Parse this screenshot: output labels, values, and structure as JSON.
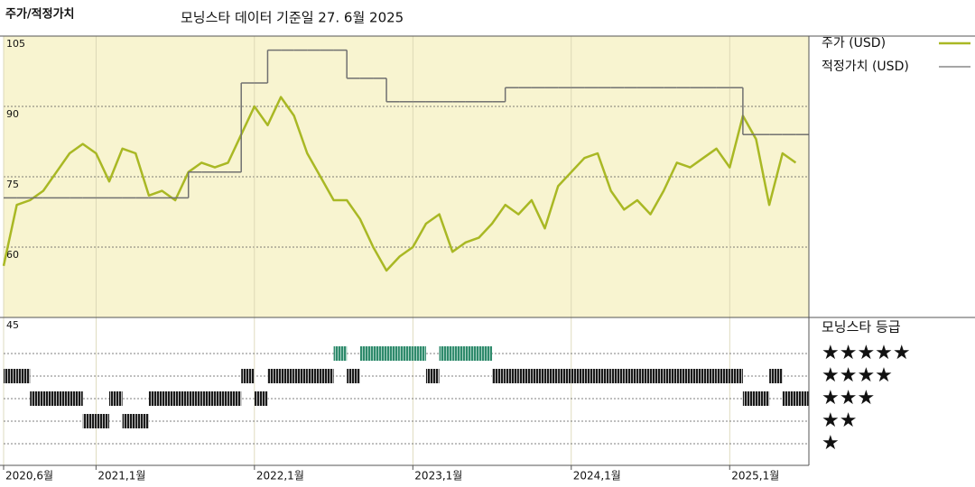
{
  "chart_data": {
    "type": "line",
    "title": "주가/적정가치",
    "subtitle": "모닝스타 데이터 기준일 27. 6월 2025",
    "x": [
      "2020-06",
      "2020-07",
      "2020-08",
      "2020-09",
      "2020-10",
      "2020-11",
      "2020-12",
      "2021-01",
      "2021-02",
      "2021-03",
      "2021-04",
      "2021-05",
      "2021-06",
      "2021-07",
      "2021-08",
      "2021-09",
      "2021-10",
      "2021-11",
      "2021-12",
      "2022-01",
      "2022-02",
      "2022-03",
      "2022-04",
      "2022-05",
      "2022-06",
      "2022-07",
      "2022-08",
      "2022-09",
      "2022-10",
      "2022-11",
      "2022-12",
      "2023-01",
      "2023-02",
      "2023-03",
      "2023-04",
      "2023-05",
      "2023-06",
      "2023-07",
      "2023-08",
      "2023-09",
      "2023-10",
      "2023-11",
      "2023-12",
      "2024-01",
      "2024-02",
      "2024-03",
      "2024-04",
      "2024-05",
      "2024-06",
      "2024-07",
      "2024-08",
      "2024-09",
      "2024-10",
      "2024-11",
      "2024-12",
      "2025-01",
      "2025-02",
      "2025-03",
      "2025-04",
      "2025-05",
      "2025-06"
    ],
    "xlim": [
      "2020-06",
      "2025-07"
    ],
    "xticks": [
      {
        "value": "2020-06",
        "label": "2020,6월"
      },
      {
        "value": "2021-01",
        "label": "2021,1월"
      },
      {
        "value": "2022-01",
        "label": "2022,1월"
      },
      {
        "value": "2023-01",
        "label": "2023,1월"
      },
      {
        "value": "2024-01",
        "label": "2024,1월"
      },
      {
        "value": "2025-01",
        "label": "2025,1월"
      }
    ],
    "ylim": [
      45,
      105
    ],
    "yticks": [
      45,
      60,
      75,
      90,
      105
    ],
    "grid": true,
    "series": [
      {
        "name": "주가 (USD)",
        "color": "#a9b824",
        "values": [
          56,
          69,
          70,
          72,
          76,
          80,
          82,
          80,
          74,
          81,
          80,
          71,
          72,
          70,
          76,
          78,
          77,
          78,
          84,
          90,
          86,
          92,
          88,
          80,
          75,
          70,
          70,
          66,
          60,
          55,
          58,
          60,
          65,
          67,
          59,
          61,
          62,
          65,
          69,
          67,
          70,
          64,
          73,
          76,
          79,
          80,
          72,
          68,
          70,
          67,
          72,
          78,
          77,
          79,
          81,
          77,
          88,
          83,
          69,
          80,
          78
        ]
      },
      {
        "name": "적정가치 (USD)",
        "color": "#707070",
        "step": true,
        "values": [
          70.5,
          70.5,
          70.5,
          70.5,
          70.5,
          70.5,
          70.5,
          70.5,
          70.5,
          70.5,
          70.5,
          70.5,
          70.5,
          70.5,
          76,
          76,
          76,
          76,
          95,
          95,
          102,
          102,
          102,
          102,
          102,
          102,
          96,
          96,
          96,
          91,
          91,
          91,
          91,
          91,
          91,
          91,
          91,
          91,
          94,
          94,
          94,
          94,
          94,
          94,
          94,
          94,
          94,
          94,
          94,
          94,
          94,
          94,
          94,
          94,
          94,
          94,
          84,
          84,
          84,
          84,
          84
        ]
      }
    ],
    "rating": {
      "title": "모닝스타 등급",
      "levels": [
        5,
        4,
        3,
        2,
        1
      ],
      "labels": [
        "★★★★★",
        "★★★★",
        "★★★",
        "★★",
        "★"
      ],
      "top_color": "#2f8a6c",
      "color": "#1a1a1a",
      "values": [
        4,
        4,
        3,
        3,
        3,
        3,
        2,
        2,
        3,
        2,
        2,
        3,
        3,
        3,
        3,
        3,
        3,
        3,
        4,
        3,
        4,
        4,
        4,
        4,
        4,
        5,
        4,
        5,
        5,
        5,
        5,
        5,
        4,
        5,
        5,
        5,
        5,
        4,
        4,
        4,
        4,
        4,
        4,
        4,
        4,
        4,
        4,
        4,
        4,
        4,
        4,
        4,
        4,
        4,
        4,
        4,
        3,
        3,
        4,
        3,
        3
      ]
    }
  }
}
